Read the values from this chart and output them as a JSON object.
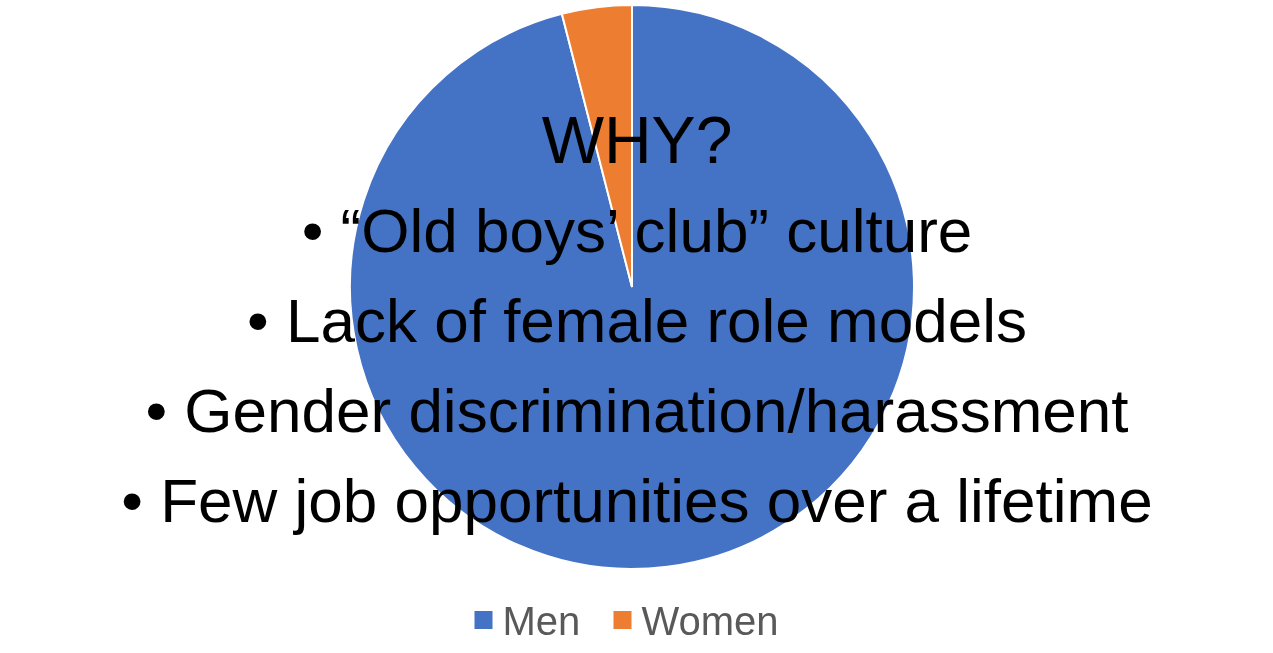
{
  "chart_data": {
    "type": "pie",
    "categories": [
      "Men",
      "Women"
    ],
    "values": [
      96,
      4
    ],
    "colors": [
      "#4472c4",
      "#ed7d31"
    ],
    "legend": "bottom",
    "annotations": [
      "WHY?",
      "• “Old boys’ club” culture",
      "• Lack of female role models",
      "• Gender discrimination/harassment",
      "• Few job opportunities over a lifetime"
    ]
  }
}
